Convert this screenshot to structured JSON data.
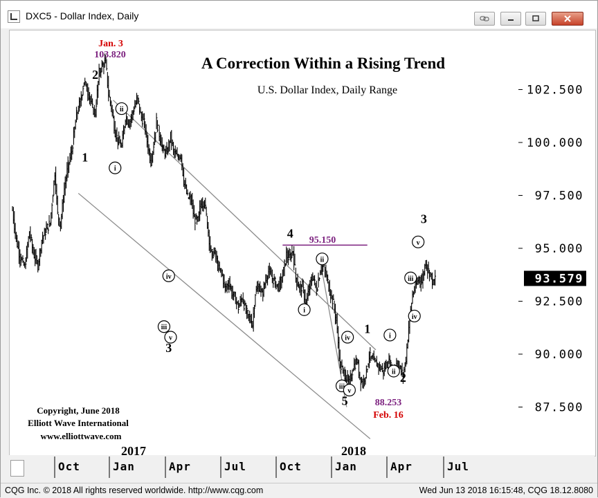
{
  "window": {
    "title": "DXC5 - Dollar Index, Daily",
    "buttons": [
      "link",
      "minimize",
      "maximize",
      "close"
    ]
  },
  "status": {
    "left": "CQG Inc. © 2018 All rights reserved worldwide. http://www.cqg.com",
    "right": "Wed Jun 13 2018 16:15:48, CQG 18.12.8080"
  },
  "colors": {
    "price": "#000000",
    "channel": "#8c8c8c",
    "annotation_purple": "#7b1f7e",
    "annotation_red": "#d40000"
  },
  "chart_data": {
    "type": "ohlc",
    "title": "A Correction Within a Rising Trend",
    "subtitle": "U.S. Dollar Index, Daily Range",
    "ylim": [
      86.0,
      105.3
    ],
    "y_ticks": [
      87.5,
      90.0,
      92.5,
      95.0,
      97.5,
      100.0,
      102.5
    ],
    "y_tick_labels": [
      "87.500",
      "90.000",
      "92.500",
      "95.000",
      "97.500",
      "100.000",
      "102.500"
    ],
    "current_value": "93.579",
    "x_tick_labels": [
      "Oct",
      "Jan",
      "Apr",
      "Jul",
      "Oct",
      "Jan",
      "Apr",
      "Jul"
    ],
    "year_labels": [
      "2017",
      "2018"
    ],
    "series_path": [
      [
        0,
        96.8
      ],
      [
        4,
        95.4
      ],
      [
        8,
        94.6
      ],
      [
        13,
        94.1
      ],
      [
        18,
        95.8
      ],
      [
        22,
        94.8
      ],
      [
        27,
        94.2
      ],
      [
        31,
        95.4
      ],
      [
        36,
        95.9
      ],
      [
        40,
        96.2
      ],
      [
        45,
        98.6
      ],
      [
        48,
        96.6
      ],
      [
        51,
        96.1
      ],
      [
        55,
        97.8
      ],
      [
        59,
        98.9
      ],
      [
        63,
        99.6
      ],
      [
        68,
        101.3
      ],
      [
        72,
        101.9
      ],
      [
        76,
        102.9
      ],
      [
        81,
        102.3
      ],
      [
        85,
        101.6
      ],
      [
        88,
        101.4
      ],
      [
        92,
        103.3
      ],
      [
        95,
        103.6
      ],
      [
        99,
        103.82
      ],
      [
        102,
        102.3
      ],
      [
        105,
        101.7
      ],
      [
        109,
        100.5
      ],
      [
        113,
        100.0
      ],
      [
        116,
        99.8
      ],
      [
        120,
        101.2
      ],
      [
        124,
        100.9
      ],
      [
        129,
        101.6
      ],
      [
        133,
        102.1
      ],
      [
        136,
        101.3
      ],
      [
        140,
        100.9
      ],
      [
        144,
        99.8
      ],
      [
        147,
        99.1
      ],
      [
        150,
        99.9
      ],
      [
        153,
        101.0
      ],
      [
        157,
        100.2
      ],
      [
        160,
        99.6
      ],
      [
        164,
        99.5
      ],
      [
        168,
        100.3
      ],
      [
        171,
        99.6
      ],
      [
        175,
        99.3
      ],
      [
        179,
        99.4
      ],
      [
        182,
        98.2
      ],
      [
        186,
        97.4
      ],
      [
        190,
        97.3
      ],
      [
        193,
        96.4
      ],
      [
        197,
        96.3
      ],
      [
        200,
        97.1
      ],
      [
        204,
        97.2
      ],
      [
        208,
        95.8
      ],
      [
        211,
        94.7
      ],
      [
        215,
        94.8
      ],
      [
        219,
        94.0
      ],
      [
        222,
        93.9
      ],
      [
        226,
        93.1
      ],
      [
        230,
        93.4
      ],
      [
        233,
        92.9
      ],
      [
        237,
        92.6
      ],
      [
        240,
        92.2
      ],
      [
        244,
        92.7
      ],
      [
        248,
        92.0
      ],
      [
        251,
        91.8
      ],
      [
        255,
        91.4
      ],
      [
        258,
        92.9
      ],
      [
        262,
        93.2
      ],
      [
        265,
        92.8
      ],
      [
        269,
        93.5
      ],
      [
        272,
        93.9
      ],
      [
        276,
        93.6
      ],
      [
        280,
        93.3
      ],
      [
        283,
        93.2
      ],
      [
        287,
        93.7
      ],
      [
        291,
        94.7
      ],
      [
        294,
        94.5
      ],
      [
        298,
        94.9
      ],
      [
        301,
        93.6
      ],
      [
        305,
        93.1
      ],
      [
        308,
        93.2
      ],
      [
        312,
        92.3
      ],
      [
        315,
        93.1
      ],
      [
        319,
        93.7
      ],
      [
        323,
        93.0
      ],
      [
        327,
        94.0
      ],
      [
        330,
        94.2
      ],
      [
        334,
        93.6
      ],
      [
        337,
        93.0
      ],
      [
        341,
        92.4
      ],
      [
        344,
        91.6
      ],
      [
        348,
        89.5
      ],
      [
        351,
        89.2
      ],
      [
        355,
        88.9
      ],
      [
        358,
        88.6
      ],
      [
        362,
        89.4
      ],
      [
        366,
        89.7
      ],
      [
        369,
        88.9
      ],
      [
        372,
        88.6
      ],
      [
        376,
        89.2
      ],
      [
        379,
        89.9
      ],
      [
        383,
        89.7
      ],
      [
        386,
        89.6
      ],
      [
        390,
        89.4
      ],
      [
        394,
        89.2
      ],
      [
        397,
        89.5
      ],
      [
        400,
        89.6
      ],
      [
        404,
        89.2
      ],
      [
        408,
        89.6
      ],
      [
        411,
        89.4
      ],
      [
        415,
        89.0
      ],
      [
        418,
        89.8
      ],
      [
        421,
        91.3
      ],
      [
        425,
        92.8
      ],
      [
        428,
        93.2
      ],
      [
        432,
        93.6
      ],
      [
        435,
        93.4
      ],
      [
        439,
        94.4
      ],
      [
        441,
        94.0
      ],
      [
        444,
        93.8
      ],
      [
        447,
        93.3
      ],
      [
        449,
        93.6
      ]
    ],
    "labels": [
      {
        "text": "Jan. 3",
        "kind": "peak-date"
      },
      {
        "text": "103.820",
        "kind": "peak-value"
      },
      {
        "text": "95.150",
        "kind": "level"
      },
      {
        "text": "88.253",
        "kind": "low-value"
      },
      {
        "text": "Feb. 16",
        "kind": "low-date"
      }
    ],
    "wave_labels": [
      {
        "text": "2",
        "x": 88,
        "y": 103.0
      },
      {
        "text": "1",
        "x": 77,
        "y": 99.1
      },
      {
        "text": "3",
        "x": 166,
        "y": 90.1
      },
      {
        "text": "4",
        "x": 295,
        "y": 95.5
      },
      {
        "text": "5",
        "x": 353,
        "y": 87.6
      },
      {
        "text": "1",
        "x": 377,
        "y": 91.0
      },
      {
        "text": "2",
        "x": 415,
        "y": 88.7
      },
      {
        "text": "3",
        "x": 437,
        "y": 96.2
      }
    ],
    "circled_labels": [
      {
        "text": "i",
        "x": 109,
        "y": 98.8
      },
      {
        "text": "ii",
        "x": 116,
        "y": 101.6
      },
      {
        "text": "iii",
        "x": 161,
        "y": 91.3
      },
      {
        "text": "iv",
        "x": 166,
        "y": 93.7
      },
      {
        "text": "v",
        "x": 168,
        "y": 90.8
      },
      {
        "text": "i",
        "x": 310,
        "y": 92.1
      },
      {
        "text": "ii",
        "x": 329,
        "y": 94.5
      },
      {
        "text": "iii",
        "x": 350,
        "y": 88.5
      },
      {
        "text": "iv",
        "x": 356,
        "y": 90.8
      },
      {
        "text": "v",
        "x": 358,
        "y": 88.3
      },
      {
        "text": "i",
        "x": 401,
        "y": 90.9
      },
      {
        "text": "ii",
        "x": 405,
        "y": 89.2
      },
      {
        "text": "iii",
        "x": 423,
        "y": 93.6
      },
      {
        "text": "iv",
        "x": 427,
        "y": 91.8
      },
      {
        "text": "v",
        "x": 431,
        "y": 95.3
      }
    ],
    "channel_lines": [
      [
        [
          107,
          102.0
        ],
        [
          386,
          90.2
        ]
      ],
      [
        [
          70,
          97.6
        ],
        [
          380,
          86.0
        ]
      ],
      [
        [
          329,
          93.9
        ],
        [
          355,
          87.5
        ]
      ]
    ],
    "level_line": {
      "value": 95.15,
      "x_from": 287,
      "x_to": 377
    },
    "copyright": [
      "Copyright, June 2018",
      "Elliott Wave International",
      "www.elliottwave.com"
    ]
  }
}
